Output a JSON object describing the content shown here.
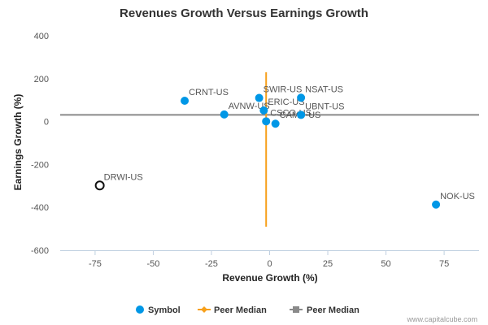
{
  "chart_data": {
    "type": "scatter",
    "title": "Revenues Growth Versus Earnings Growth",
    "xlabel": "Revenue Growth (%)",
    "ylabel": "Earnings Growth (%)",
    "xlim": [
      -90,
      90
    ],
    "ylim": [
      -600,
      400
    ],
    "x_ticks": [
      -75,
      -50,
      -25,
      0,
      25,
      50,
      75
    ],
    "y_ticks": [
      400,
      200,
      0,
      -200,
      -400,
      -600
    ],
    "x_tick_labels": [
      "-75",
      "-50",
      "-25",
      "0",
      "25",
      "50",
      "75"
    ],
    "y_tick_labels": [
      "400",
      "200",
      "0",
      "-200",
      "-400",
      "-600"
    ],
    "grid": false,
    "points": [
      {
        "label": "CRNT-US",
        "x": -36.5,
        "y": 97,
        "style": "filled"
      },
      {
        "label": "AVNW-US",
        "x": -19.5,
        "y": 33,
        "style": "filled"
      },
      {
        "label": "SWIR-US",
        "x": -4.5,
        "y": 110,
        "style": "filled"
      },
      {
        "label": "ERIC-US",
        "x": -2.5,
        "y": 52,
        "style": "filled"
      },
      {
        "label": "CSCO-US",
        "x": -1.5,
        "y": 1,
        "style": "filled"
      },
      {
        "label": "CAMP-US",
        "x": 2.5,
        "y": -10,
        "style": "filled"
      },
      {
        "label": "NSAT-US",
        "x": 13.5,
        "y": 111,
        "style": "filled"
      },
      {
        "label": "UBNT-US",
        "x": 13.5,
        "y": 31,
        "style": "filled"
      },
      {
        "label": "NOK-US",
        "x": 71.5,
        "y": -387,
        "style": "filled"
      },
      {
        "label": "DRWI-US",
        "x": -73.0,
        "y": -298,
        "style": "hollow"
      }
    ],
    "peer_median_x": -1.5,
    "peer_median_y": 31,
    "median_x_range": [
      -490,
      230
    ],
    "legend": [
      {
        "name": "Symbol",
        "marker": "circle",
        "color": "#0097e6"
      },
      {
        "name": "Peer Median",
        "marker": "diamond-line",
        "color": "#f7a01a"
      },
      {
        "name": "Peer Median",
        "marker": "square-line",
        "color": "#8a8a8a"
      }
    ],
    "legend_position": "bottom-center",
    "colors": {
      "point": "#0097e6",
      "hollow_stroke": "#111111",
      "median_vertical": "#f7a01a",
      "median_horizontal": "#8a8a8a"
    }
  },
  "credit": "www.capitalcube.com"
}
